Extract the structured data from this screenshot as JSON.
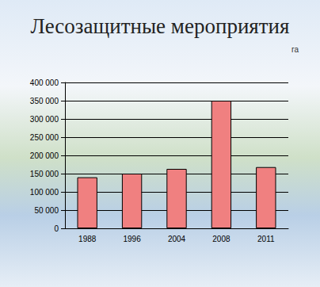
{
  "chart_data": {
    "type": "bar",
    "title": "Лесозащитные мероприятия",
    "ylabel": "га",
    "categories": [
      "1988",
      "1996",
      "2004",
      "2008",
      "2011"
    ],
    "values": [
      140000,
      150000,
      163000,
      350000,
      168000
    ],
    "color": "#f08080",
    "ylim": [
      0,
      400000
    ],
    "yticks": [
      0,
      {
        "value": 50000,
        "label": "50 000"
      },
      {
        "value": 100000,
        "label": "100 000"
      },
      {
        "value": 150000,
        "label": "150 000"
      },
      {
        "value": 200000,
        "label": "200 000"
      },
      {
        "value": 250000,
        "label": "250 000"
      },
      {
        "value": 300000,
        "label": "300 000"
      },
      {
        "value": 350000,
        "label": "350 000"
      },
      {
        "value": 400000,
        "label": "400 000"
      }
    ],
    "grid": true
  }
}
